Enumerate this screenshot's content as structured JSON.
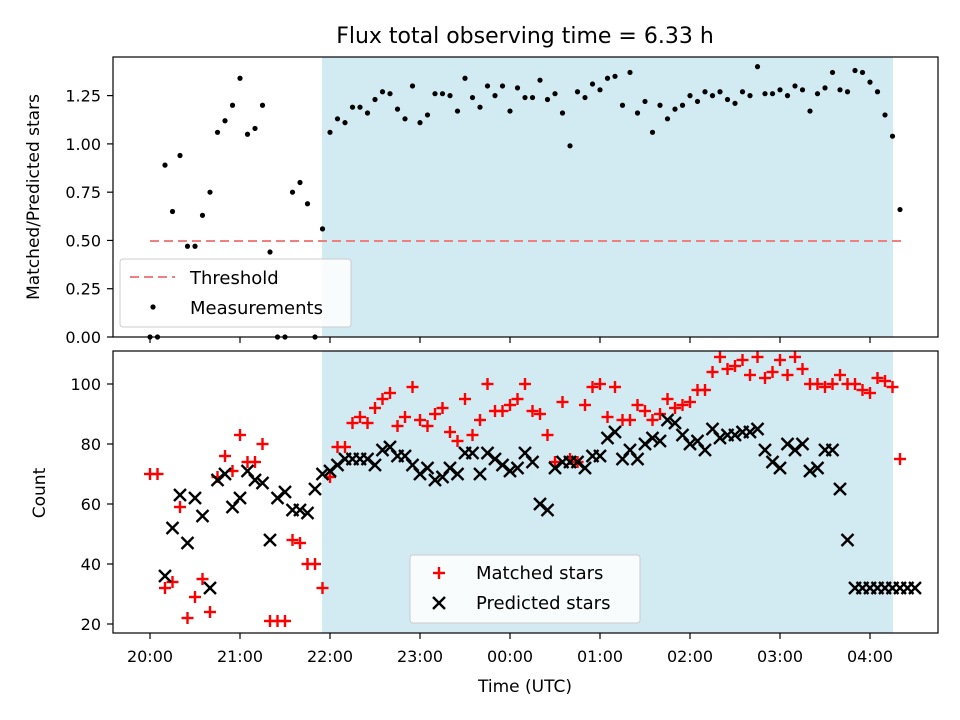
{
  "chart_data": [
    {
      "type": "scatter",
      "panel": "top",
      "title": "Flux total observing time = 6.33 h",
      "xlabel": "",
      "ylabel": "Matched/Predicted stars",
      "ylim": [
        0,
        1.45
      ],
      "yticks": [
        0.0,
        0.25,
        0.5,
        0.75,
        1.0,
        1.25
      ],
      "ytick_labels": [
        "0.00",
        "0.25",
        "0.50",
        "0.75",
        "1.00",
        "1.25"
      ],
      "shaded_region": {
        "x_start": "21:55",
        "x_end": "04:15",
        "color": "#add8e6"
      },
      "threshold": {
        "name": "Threshold",
        "value": 0.5,
        "x_start": "20:00",
        "x_end": "04:30",
        "color": "#f08080",
        "style": "dashed"
      },
      "legend": {
        "position": "lower-left",
        "entries": [
          "Threshold",
          "Measurements"
        ]
      },
      "series": [
        {
          "name": "Measurements",
          "color": "#000000",
          "marker": "dot",
          "x_minutes_after_20": [
            0,
            5,
            10,
            15,
            20,
            25,
            30,
            35,
            40,
            45,
            50,
            55,
            60,
            65,
            70,
            75,
            80,
            85,
            90,
            95,
            100,
            105,
            110,
            115,
            120,
            125,
            130,
            135,
            140,
            145,
            150,
            155,
            160,
            165,
            170,
            175,
            180,
            185,
            190,
            195,
            200,
            205,
            210,
            215,
            220,
            225,
            230,
            235,
            240,
            245,
            250,
            255,
            260,
            265,
            270,
            275,
            280,
            285,
            290,
            295,
            300,
            305,
            310,
            315,
            320,
            325,
            330,
            335,
            340,
            345,
            350,
            355,
            360,
            365,
            370,
            375,
            380,
            385,
            390,
            395,
            400,
            405,
            410,
            415,
            420,
            425,
            430,
            435,
            440,
            445,
            450,
            455,
            460,
            465,
            470,
            475,
            480,
            485,
            490,
            495,
            500
          ],
          "y": [
            0,
            0,
            0.89,
            0.65,
            0.94,
            0.47,
            0.47,
            0.63,
            0.75,
            1.06,
            1.12,
            1.2,
            1.34,
            1.05,
            1.08,
            1.2,
            0.44,
            0,
            0,
            0.75,
            0.8,
            0.69,
            0,
            0.56,
            1.06,
            1.13,
            1.11,
            1.19,
            1.19,
            1.16,
            1.23,
            1.27,
            1.26,
            1.18,
            1.13,
            1.3,
            1.11,
            1.15,
            1.26,
            1.26,
            1.25,
            1.17,
            1.34,
            1.24,
            1.19,
            1.3,
            1.25,
            1.3,
            1.17,
            1.29,
            1.24,
            1.24,
            1.33,
            1.23,
            1.26,
            1.16,
            0.99,
            1.27,
            1.24,
            1.31,
            1.28,
            1.34,
            1.35,
            1.2,
            1.37,
            1.16,
            1.22,
            1.06,
            1.2,
            1.13,
            1.18,
            1.2,
            1.25,
            1.22,
            1.27,
            1.25,
            1.27,
            1.23,
            1.21,
            1.27,
            1.25,
            1.4,
            1.26,
            1.26,
            1.28,
            1.25,
            1.3,
            1.28,
            1.17,
            1.26,
            1.29,
            1.37,
            1.28,
            1.27,
            1.38,
            1.37,
            1.32,
            1.27,
            1.15,
            1.04,
            0.66
          ]
        }
      ]
    },
    {
      "type": "scatter",
      "panel": "bottom",
      "title": "",
      "xlabel": "Time (UTC)",
      "ylabel": "Count",
      "ylim": [
        17,
        111
      ],
      "yticks": [
        20,
        40,
        60,
        80,
        100
      ],
      "xtick_labels": [
        "20:00",
        "21:00",
        "22:00",
        "23:00",
        "00:00",
        "01:00",
        "02:00",
        "03:00",
        "04:00"
      ],
      "xlim_minutes_after_20": [
        -20,
        525
      ],
      "legend": {
        "position": "lower-center",
        "entries": [
          "Matched stars",
          "Predicted stars"
        ]
      },
      "series": [
        {
          "name": "Matched stars",
          "color": "#ff0000",
          "marker": "plus",
          "x_minutes_after_20": [
            0,
            5,
            10,
            15,
            20,
            25,
            30,
            35,
            40,
            45,
            50,
            55,
            60,
            65,
            70,
            75,
            80,
            85,
            90,
            95,
            100,
            105,
            110,
            115,
            120,
            125,
            130,
            135,
            140,
            145,
            150,
            155,
            160,
            165,
            170,
            175,
            180,
            185,
            190,
            195,
            200,
            205,
            210,
            215,
            220,
            225,
            230,
            235,
            240,
            245,
            250,
            255,
            260,
            265,
            270,
            275,
            280,
            285,
            290,
            295,
            300,
            305,
            310,
            315,
            320,
            325,
            330,
            335,
            340,
            345,
            350,
            355,
            360,
            365,
            370,
            375,
            380,
            385,
            390,
            395,
            400,
            405,
            410,
            415,
            420,
            425,
            430,
            435,
            440,
            445,
            450,
            455,
            460,
            465,
            470,
            475,
            480,
            485,
            490,
            495,
            500
          ],
          "y": [
            70,
            70,
            32,
            34,
            59,
            22,
            29,
            35,
            24,
            69,
            76,
            71,
            83,
            74,
            74,
            80,
            21,
            21,
            21,
            48,
            47,
            40,
            40,
            32,
            69,
            79,
            79,
            87,
            89,
            87,
            92,
            95,
            97,
            86,
            89,
            99,
            88,
            86,
            90,
            92,
            84,
            81,
            95,
            83,
            88,
            100,
            91,
            91,
            93,
            95,
            100,
            91,
            90,
            83,
            74,
            94,
            75,
            74,
            93,
            99,
            100,
            89,
            99,
            88,
            88,
            93,
            91,
            88,
            90,
            95,
            92,
            93,
            94,
            98,
            98,
            104,
            109,
            105,
            106,
            108,
            103,
            109,
            102,
            104,
            108,
            103,
            109,
            105,
            100,
            100,
            99,
            100,
            103,
            100,
            100,
            98,
            97,
            102,
            101,
            99,
            75
          ]
        },
        {
          "name": "Predicted stars",
          "color": "#000000",
          "marker": "x",
          "x_minutes_after_20": [
            10,
            15,
            20,
            25,
            30,
            35,
            40,
            45,
            50,
            55,
            60,
            65,
            70,
            75,
            80,
            85,
            90,
            95,
            100,
            105,
            110,
            115,
            120,
            125,
            130,
            135,
            140,
            145,
            150,
            155,
            160,
            165,
            170,
            175,
            180,
            185,
            190,
            195,
            200,
            205,
            210,
            215,
            220,
            225,
            230,
            235,
            240,
            245,
            250,
            255,
            260,
            265,
            270,
            275,
            280,
            285,
            290,
            295,
            300,
            305,
            310,
            315,
            320,
            325,
            330,
            335,
            340,
            345,
            350,
            355,
            360,
            365,
            370,
            375,
            380,
            385,
            390,
            395,
            400,
            405,
            410,
            415,
            420,
            425,
            430,
            435,
            440,
            445,
            450,
            455,
            460,
            465,
            470,
            475,
            480,
            485,
            490,
            495,
            500,
            505,
            510
          ],
          "y": [
            36,
            52,
            63,
            47,
            62,
            56,
            32,
            68,
            70,
            59,
            62,
            71,
            68,
            67,
            48,
            62,
            64,
            58,
            58,
            57,
            65,
            70,
            71,
            73,
            75,
            75,
            75,
            75,
            73,
            78,
            79,
            76,
            76,
            73,
            70,
            72,
            68,
            69,
            72,
            70,
            77,
            77,
            70,
            77,
            75,
            73,
            71,
            72,
            77,
            74,
            60,
            58,
            72,
            74,
            74,
            74,
            72,
            76,
            76,
            82,
            84,
            75,
            78,
            75,
            80,
            82,
            81,
            88,
            87,
            83,
            80,
            81,
            78,
            85,
            82,
            83,
            83,
            84,
            84,
            85,
            78,
            74,
            72,
            80,
            78,
            80,
            71,
            72,
            78,
            78,
            65,
            48,
            32,
            32,
            32,
            32,
            32,
            32,
            32,
            32,
            32
          ]
        }
      ]
    }
  ]
}
